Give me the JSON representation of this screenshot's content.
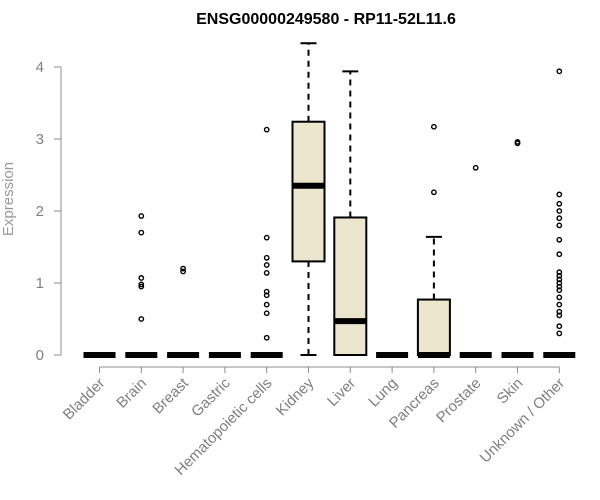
{
  "chart_data": {
    "type": "boxplot",
    "title": "ENSG00000249580 - RP11-52L11.6",
    "xlabel": "",
    "ylabel": "Expression",
    "ylim": [
      0,
      4.3
    ],
    "yticks": [
      0,
      1,
      2,
      3,
      4
    ],
    "grid": false,
    "box_fill": "#ede6cf",
    "categories": [
      "Bladder",
      "Brain",
      "Breast",
      "Gastric",
      "Hematopoietic cells",
      "Kidney",
      "Liver",
      "Lung",
      "Pancreas",
      "Prostate",
      "Skin",
      "Unknown / Other"
    ],
    "boxes": [
      {
        "category": "Bladder",
        "whisker_low": 0,
        "q1": 0,
        "median": 0,
        "q3": 0,
        "whisker_high": 0,
        "outliers": []
      },
      {
        "category": "Brain",
        "whisker_low": 0,
        "q1": 0,
        "median": 0,
        "q3": 0,
        "whisker_high": 0,
        "outliers": [
          0.5,
          0.95,
          0.98,
          1.07,
          1.7,
          1.93
        ]
      },
      {
        "category": "Breast",
        "whisker_low": 0,
        "q1": 0,
        "median": 0,
        "q3": 0,
        "whisker_high": 0,
        "outliers": [
          1.16,
          1.2
        ]
      },
      {
        "category": "Gastric",
        "whisker_low": 0,
        "q1": 0,
        "median": 0,
        "q3": 0,
        "whisker_high": 0,
        "outliers": []
      },
      {
        "category": "Hematopoietic cells",
        "whisker_low": 0,
        "q1": 0,
        "median": 0,
        "q3": 0,
        "whisker_high": 0,
        "outliers": [
          0.24,
          0.58,
          0.7,
          0.83,
          0.88,
          1.14,
          1.25,
          1.35,
          1.63,
          3.13
        ]
      },
      {
        "category": "Kidney",
        "whisker_low": 0,
        "q1": 1.3,
        "median": 2.35,
        "q3": 3.24,
        "whisker_high": 4.33,
        "outliers": []
      },
      {
        "category": "Liver",
        "whisker_low": 0,
        "q1": 0,
        "median": 0.47,
        "q3": 1.91,
        "whisker_high": 3.94,
        "outliers": []
      },
      {
        "category": "Lung",
        "whisker_low": 0,
        "q1": 0,
        "median": 0,
        "q3": 0,
        "whisker_high": 0,
        "outliers": []
      },
      {
        "category": "Pancreas",
        "whisker_low": 0,
        "q1": 0,
        "median": 0,
        "q3": 0.77,
        "whisker_high": 1.64,
        "outliers": [
          2.26,
          3.17
        ]
      },
      {
        "category": "Prostate",
        "whisker_low": 0,
        "q1": 0,
        "median": 0,
        "q3": 0,
        "whisker_high": 0,
        "outliers": [
          2.6
        ]
      },
      {
        "category": "Skin",
        "whisker_low": 0,
        "q1": 0,
        "median": 0,
        "q3": 0,
        "whisker_high": 0,
        "outliers": [
          2.94,
          2.96
        ]
      },
      {
        "category": "Unknown / Other",
        "whisker_low": 0,
        "q1": 0,
        "median": 0,
        "q3": 0,
        "whisker_high": 0,
        "outliers": [
          0.3,
          0.4,
          0.55,
          0.6,
          0.7,
          0.8,
          0.9,
          0.95,
          1.0,
          1.05,
          1.1,
          1.15,
          1.4,
          1.6,
          1.8,
          1.9,
          2.0,
          2.1,
          2.23,
          3.94
        ]
      }
    ]
  }
}
